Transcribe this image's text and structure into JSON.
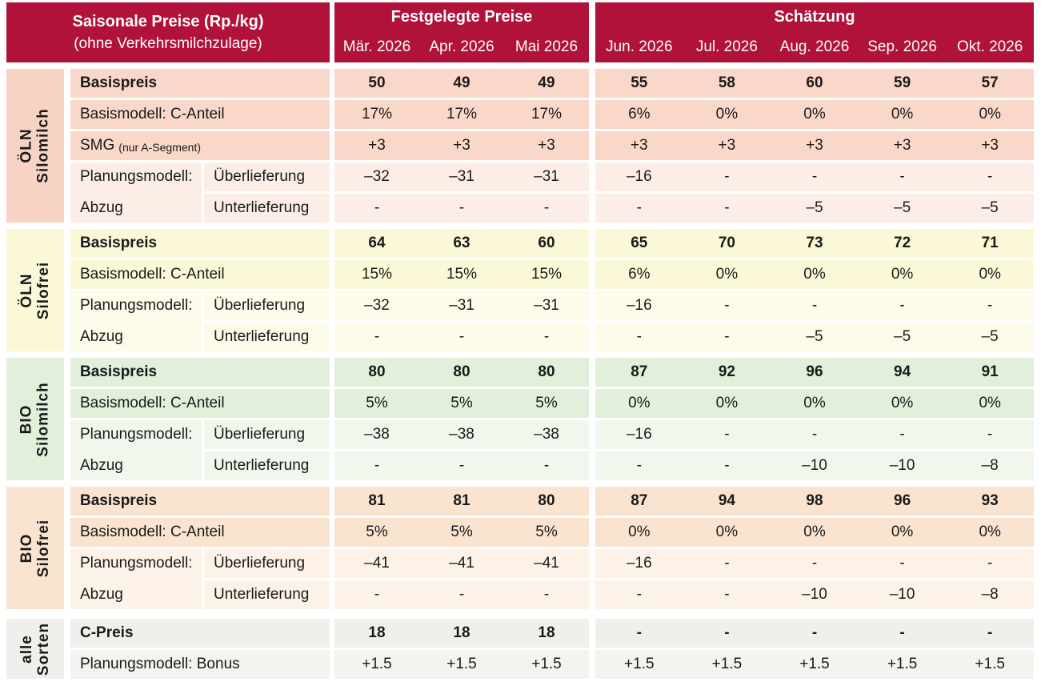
{
  "colors": {
    "header_bg": "#B01239",
    "header_text": "#FFFFFF",
    "text": "#1A1A1A",
    "page_bg": "#FFFFFF"
  },
  "chart_data": {
    "type": "table",
    "header": {
      "title": "Saisonale Preise (Rp./kg)",
      "subtitle": "(ohne Verkehrsmilchzulage)",
      "fixed": {
        "title": "Festgelegte Preise",
        "months": [
          "Mär. 2026",
          "Apr. 2026",
          "Mai 2026"
        ]
      },
      "estimate": {
        "title": "Schätzung",
        "months": [
          "Jun. 2026",
          "Jul. 2026",
          "Aug. 2026",
          "Sep. 2026",
          "Okt. 2026"
        ]
      }
    },
    "groups": [
      {
        "sidebar": [
          "ÖLN",
          "Silomilch"
        ],
        "colors": {
          "dark": "#F9D7C9",
          "light": "#FCEEE7",
          "sidebar": "#F8D3C4"
        },
        "plan_label": {
          "line1": "Planungsmodell:",
          "line2": "Abzug"
        },
        "rows": [
          {
            "label": "Basispreis",
            "values": [
              "50",
              "49",
              "49",
              "55",
              "58",
              "60",
              "59",
              "57"
            ]
          },
          {
            "label": "Basismodell: C-Anteil",
            "values": [
              "17%",
              "17%",
              "17%",
              "6%",
              "0%",
              "0%",
              "0%",
              "0%"
            ]
          },
          {
            "label": "SMG",
            "label_suffix": "(nur A-Segment)",
            "values": [
              "+3",
              "+3",
              "+3",
              "+3",
              "+3",
              "+3",
              "+3",
              "+3"
            ]
          },
          {
            "label": "Überlieferung",
            "values": [
              "–32",
              "–31",
              "–31",
              "–16",
              "-",
              "-",
              "-",
              "-"
            ]
          },
          {
            "label": "Unterlieferung",
            "values": [
              "-",
              "-",
              "-",
              "-",
              "-",
              "–5",
              "–5",
              "–5"
            ]
          }
        ]
      },
      {
        "sidebar": [
          "ÖLN",
          "Silofrei"
        ],
        "colors": {
          "dark": "#FBF8D8",
          "light": "#FDFBEA",
          "sidebar": "#FBF8D8"
        },
        "plan_label": {
          "line1": "Planungsmodell:",
          "line2": "Abzug"
        },
        "rows": [
          {
            "label": "Basispreis",
            "values": [
              "64",
              "63",
              "60",
              "65",
              "70",
              "73",
              "72",
              "71"
            ]
          },
          {
            "label": "Basismodell: C-Anteil",
            "values": [
              "15%",
              "15%",
              "15%",
              "6%",
              "0%",
              "0%",
              "0%",
              "0%"
            ]
          },
          {
            "label": "Überlieferung",
            "values": [
              "–32",
              "–31",
              "–31",
              "–16",
              "-",
              "-",
              "-",
              "-"
            ]
          },
          {
            "label": "Unterlieferung",
            "values": [
              "-",
              "-",
              "-",
              "-",
              "-",
              "–5",
              "–5",
              "–5"
            ]
          }
        ]
      },
      {
        "sidebar": [
          "BIO",
          "Silomilch"
        ],
        "colors": {
          "dark": "#E2EFDB",
          "light": "#F1F7EC",
          "sidebar": "#E2EFDB"
        },
        "plan_label": {
          "line1": "Planungsmodell:",
          "line2": "Abzug"
        },
        "rows": [
          {
            "label": "Basispreis",
            "values": [
              "80",
              "80",
              "80",
              "87",
              "92",
              "96",
              "94",
              "91"
            ]
          },
          {
            "label": "Basismodell: C-Anteil",
            "values": [
              "5%",
              "5%",
              "5%",
              "0%",
              "0%",
              "0%",
              "0%",
              "0%"
            ]
          },
          {
            "label": "Überlieferung",
            "values": [
              "–38",
              "–38",
              "–38",
              "–16",
              "-",
              "-",
              "-",
              "-"
            ]
          },
          {
            "label": "Unterlieferung",
            "values": [
              "-",
              "-",
              "-",
              "-",
              "-",
              "–10",
              "–10",
              "–8"
            ]
          }
        ]
      },
      {
        "sidebar": [
          "BIO",
          "Silofrei"
        ],
        "colors": {
          "dark": "#FAE4CF",
          "light": "#FCF2E7",
          "sidebar": "#FAE4CF"
        },
        "plan_label": {
          "line1": "Planungsmodell:",
          "line2": "Abzug"
        },
        "rows": [
          {
            "label": "Basispreis",
            "values": [
              "81",
              "81",
              "80",
              "87",
              "94",
              "98",
              "96",
              "93"
            ]
          },
          {
            "label": "Basismodell: C-Anteil",
            "values": [
              "5%",
              "5%",
              "5%",
              "0%",
              "0%",
              "0%",
              "0%",
              "0%"
            ]
          },
          {
            "label": "Überlieferung",
            "values": [
              "–41",
              "–41",
              "–41",
              "–16",
              "-",
              "-",
              "-",
              "-"
            ]
          },
          {
            "label": "Unterlieferung",
            "values": [
              "-",
              "-",
              "-",
              "-",
              "-",
              "–10",
              "–10",
              "–8"
            ]
          }
        ]
      },
      {
        "sidebar": [
          "alle",
          "Sorten"
        ],
        "colors": {
          "dark": "#F0EFEB",
          "light": "#F4F3F0",
          "sidebar": "#F0EFEB"
        },
        "rows": [
          {
            "label": "C-Preis",
            "values": [
              "18",
              "18",
              "18",
              "-",
              "-",
              "-",
              "-",
              "-"
            ]
          },
          {
            "label": "Planungsmodell: Bonus",
            "values": [
              "+1.5",
              "+1.5",
              "+1.5",
              "+1.5",
              "+1.5",
              "+1.5",
              "+1.5",
              "+1.5"
            ]
          }
        ]
      }
    ]
  }
}
